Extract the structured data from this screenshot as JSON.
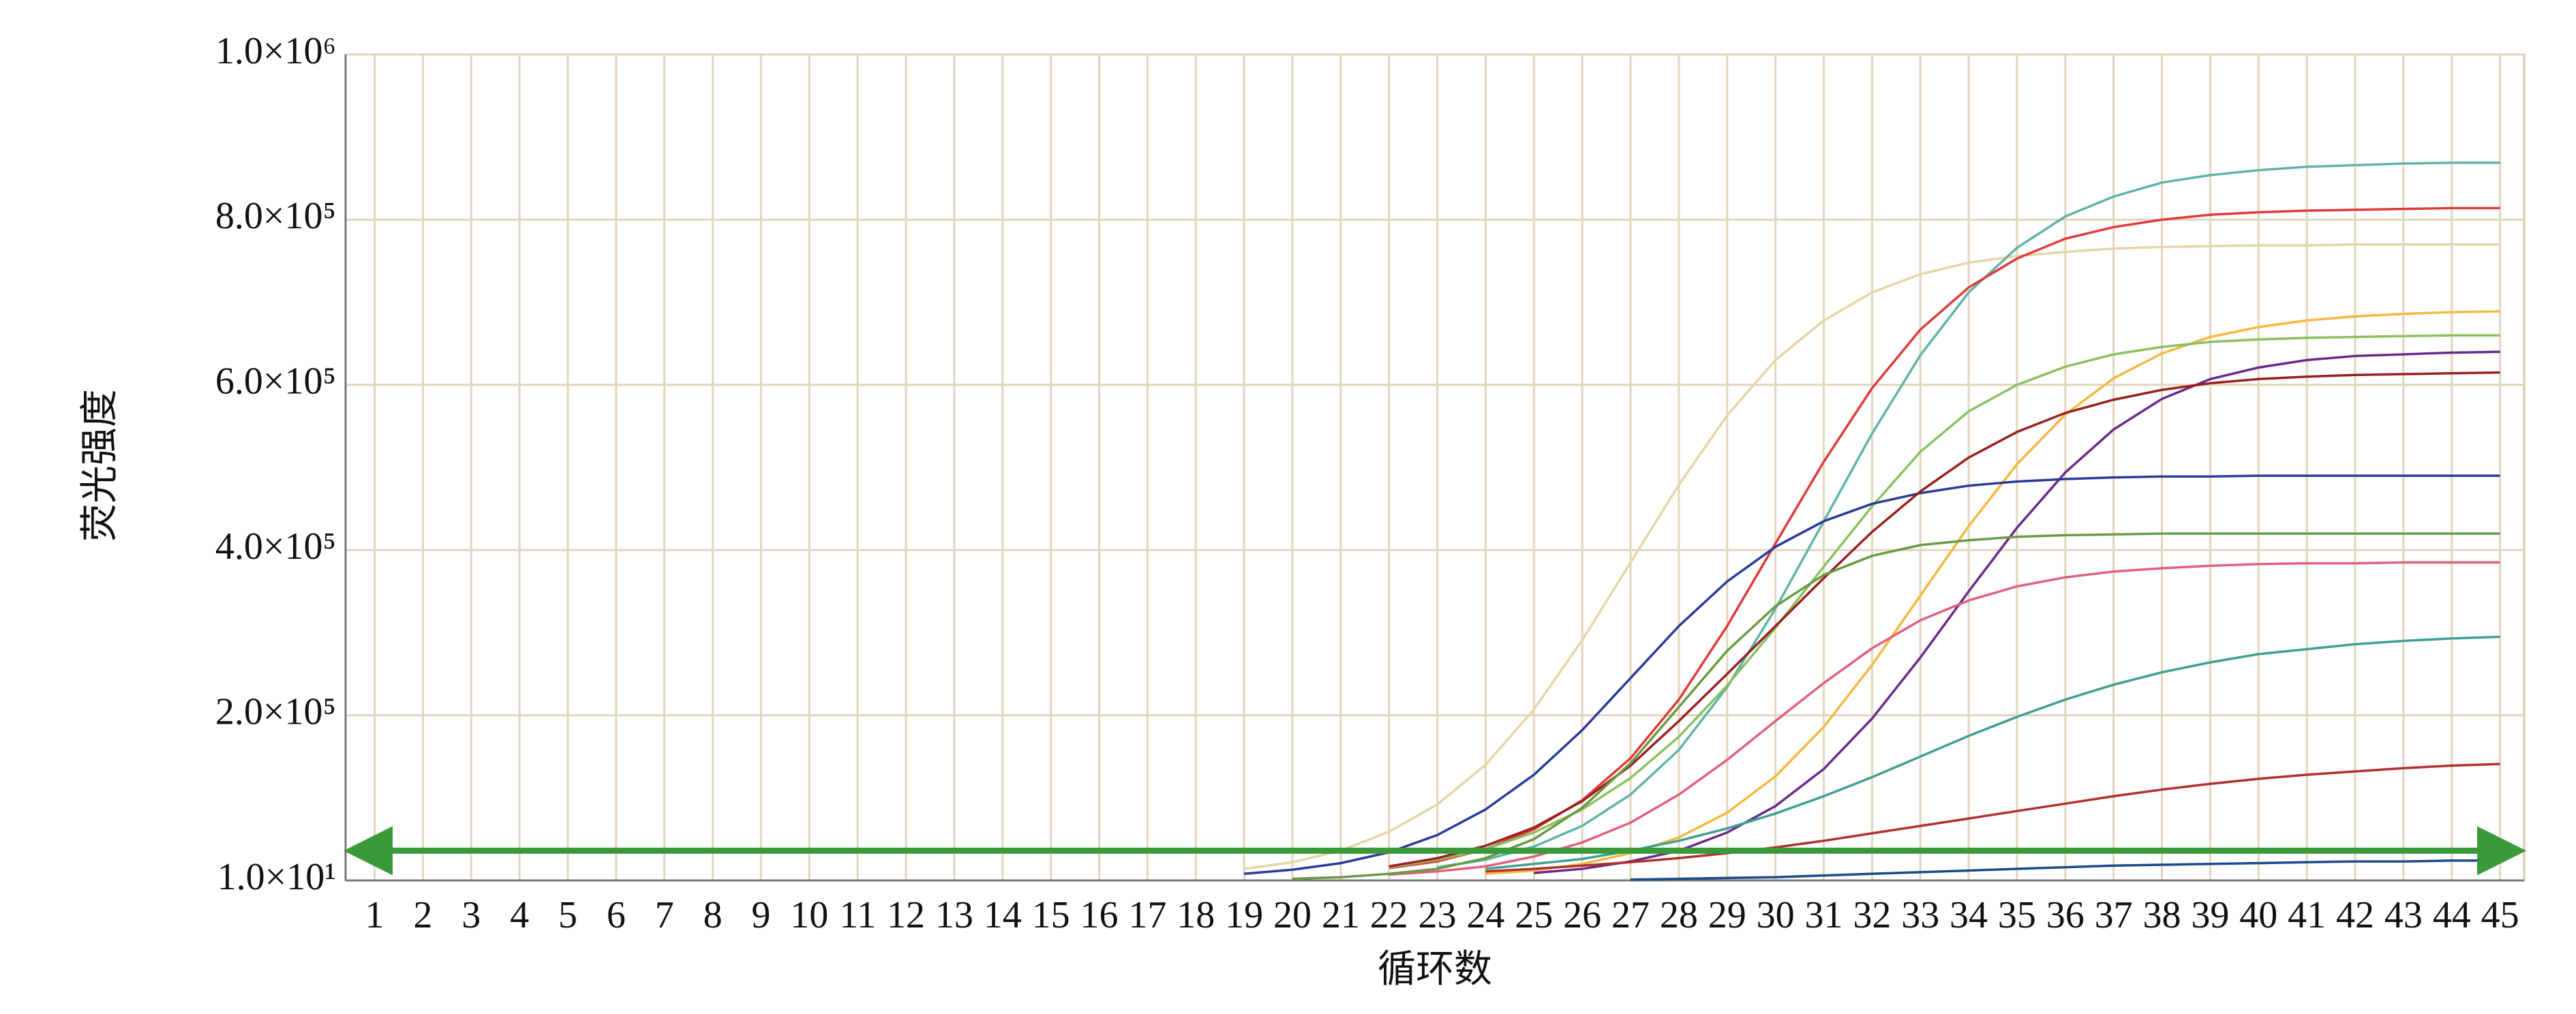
{
  "chart_data": {
    "type": "line",
    "y_label": "荧光强度",
    "x_label": "循环数",
    "x": [
      1,
      2,
      3,
      4,
      5,
      6,
      7,
      8,
      9,
      10,
      11,
      12,
      13,
      14,
      15,
      16,
      17,
      18,
      19,
      20,
      21,
      22,
      23,
      24,
      25,
      26,
      27,
      28,
      29,
      30,
      31,
      32,
      33,
      34,
      35,
      36,
      37,
      38,
      39,
      40,
      41,
      42,
      43,
      44,
      45
    ],
    "xlim": [
      0.4,
      45.5
    ],
    "xticks": [
      1,
      2,
      3,
      4,
      5,
      6,
      7,
      8,
      9,
      10,
      11,
      12,
      13,
      14,
      15,
      16,
      17,
      18,
      19,
      20,
      21,
      22,
      23,
      24,
      25,
      26,
      27,
      28,
      29,
      30,
      31,
      32,
      33,
      34,
      35,
      36,
      37,
      38,
      39,
      40,
      41,
      42,
      43,
      44,
      45
    ],
    "ylim": [
      10,
      1000000
    ],
    "yticks": [
      {
        "value": 10,
        "label": "1.0×10¹"
      },
      {
        "value": 200000,
        "label": "2.0×10⁵"
      },
      {
        "value": 400000,
        "label": "4.0×10⁵"
      },
      {
        "value": 600000,
        "label": "6.0×10⁵"
      },
      {
        "value": 800000,
        "label": "8.0×10⁵"
      },
      {
        "value": 1000000,
        "label": "1.0×10⁶"
      }
    ],
    "grid": true,
    "threshold": 36000,
    "threshold_color": "#3a9a3a",
    "series": [
      {
        "color": "#e6d6a6",
        "values": [
          null,
          null,
          null,
          null,
          null,
          null,
          null,
          null,
          null,
          null,
          null,
          null,
          null,
          null,
          null,
          null,
          null,
          null,
          14000,
          22000,
          36000,
          59000,
          92000,
          140000,
          207000,
          291000,
          385000,
          479000,
          563000,
          630000,
          678000,
          712000,
          734000,
          748000,
          756000,
          761000,
          765000,
          767000,
          768000,
          769000,
          769000,
          770000,
          770000,
          770000,
          770000
        ]
      },
      {
        "color": "#5fb3a8",
        "values": [
          null,
          null,
          null,
          null,
          null,
          null,
          null,
          null,
          null,
          null,
          null,
          null,
          null,
          null,
          null,
          null,
          null,
          null,
          null,
          null,
          null,
          null,
          16000,
          25000,
          41000,
          66000,
          104000,
          158000,
          234000,
          329000,
          435000,
          541000,
          636000,
          712000,
          766000,
          804000,
          828000,
          845000,
          854000,
          860000,
          864000,
          866000,
          868000,
          869000,
          869000
        ]
      },
      {
        "color": "#e03a3a",
        "values": [
          null,
          null,
          null,
          null,
          null,
          null,
          null,
          null,
          null,
          null,
          null,
          null,
          null,
          null,
          null,
          null,
          null,
          null,
          null,
          null,
          null,
          15000,
          23000,
          38000,
          62000,
          97000,
          148000,
          219000,
          308000,
          408000,
          507000,
          596000,
          667000,
          718000,
          753000,
          777000,
          791000,
          800000,
          806000,
          809000,
          811000,
          812000,
          813000,
          814000,
          814000
        ]
      },
      {
        "color": "#f5b840",
        "values": [
          null,
          null,
          null,
          null,
          null,
          null,
          null,
          null,
          null,
          null,
          null,
          null,
          null,
          null,
          null,
          null,
          null,
          null,
          null,
          null,
          null,
          null,
          null,
          8000,
          12000,
          20000,
          33000,
          52000,
          82000,
          126000,
          186000,
          261000,
          345000,
          429000,
          504000,
          564000,
          608000,
          638000,
          658000,
          670000,
          678000,
          683000,
          686000,
          688000,
          689000
        ]
      },
      {
        "color": "#6a2a8a",
        "values": [
          null,
          null,
          null,
          null,
          null,
          null,
          null,
          null,
          null,
          null,
          null,
          null,
          null,
          null,
          null,
          null,
          null,
          null,
          null,
          null,
          null,
          null,
          null,
          null,
          9000,
          14000,
          23000,
          36000,
          58000,
          90000,
          135000,
          196000,
          270000,
          350000,
          427000,
          494000,
          546000,
          583000,
          607000,
          621000,
          630000,
          635000,
          637000,
          639000,
          640000
        ]
      },
      {
        "color": "#8cc060",
        "values": [
          null,
          null,
          null,
          null,
          null,
          null,
          null,
          null,
          null,
          null,
          null,
          null,
          null,
          null,
          null,
          null,
          null,
          null,
          null,
          null,
          null,
          16000,
          25000,
          38000,
          58000,
          86000,
          124000,
          174000,
          236000,
          306000,
          380000,
          453000,
          519000,
          568000,
          600000,
          622000,
          637000,
          646000,
          652000,
          655000,
          657000,
          658000,
          659000,
          660000,
          660000
        ]
      },
      {
        "color": "#2a3a9a",
        "values": [
          null,
          null,
          null,
          null,
          null,
          null,
          null,
          null,
          null,
          null,
          null,
          null,
          null,
          null,
          null,
          null,
          null,
          null,
          8000,
          13000,
          21000,
          34000,
          55000,
          86000,
          128000,
          182000,
          245000,
          308000,
          362000,
          404000,
          435000,
          456000,
          469000,
          478000,
          483000,
          486000,
          488000,
          489000,
          489000,
          490000,
          490000,
          490000,
          490000,
          490000,
          490000
        ]
      },
      {
        "color": "#9a2020",
        "values": [
          null,
          null,
          null,
          null,
          null,
          null,
          null,
          null,
          null,
          null,
          null,
          null,
          null,
          null,
          null,
          null,
          null,
          null,
          null,
          null,
          null,
          17000,
          27000,
          42000,
          64000,
          96000,
          139000,
          193000,
          250000,
          308000,
          366000,
          422000,
          471000,
          512000,
          543000,
          566000,
          582000,
          594000,
          602000,
          607000,
          610000,
          612000,
          613000,
          614000,
          615000
        ]
      },
      {
        "color": "#e06080",
        "values": [
          null,
          null,
          null,
          null,
          null,
          null,
          null,
          null,
          null,
          null,
          null,
          null,
          null,
          null,
          null,
          null,
          null,
          null,
          null,
          null,
          null,
          7000,
          11000,
          17000,
          29000,
          46000,
          70000,
          104000,
          146000,
          193000,
          239000,
          281000,
          315000,
          339000,
          356000,
          367000,
          374000,
          378000,
          381000,
          383000,
          384000,
          384000,
          385000,
          385000,
          385000
        ]
      },
      {
        "color": "#3f9f94",
        "values": [
          null,
          null,
          null,
          null,
          null,
          null,
          null,
          null,
          null,
          null,
          null,
          null,
          null,
          null,
          null,
          null,
          null,
          null,
          null,
          null,
          null,
          null,
          null,
          14000,
          20000,
          26000,
          36000,
          48000,
          63000,
          81000,
          102000,
          125000,
          150000,
          175000,
          198000,
          219000,
          237000,
          252000,
          264000,
          274000,
          280000,
          286000,
          290000,
          293000,
          295000
        ]
      },
      {
        "color": "#b03030",
        "values": [
          null,
          null,
          null,
          null,
          null,
          null,
          null,
          null,
          null,
          null,
          null,
          null,
          null,
          null,
          null,
          null,
          null,
          null,
          null,
          null,
          null,
          null,
          null,
          11000,
          14000,
          18000,
          22000,
          27000,
          33000,
          40000,
          48000,
          57000,
          66000,
          75000,
          84000,
          93000,
          102000,
          110000,
          117000,
          123000,
          128000,
          132000,
          136000,
          139000,
          141000
        ]
      },
      {
        "color": "#1a4a8a",
        "values": [
          null,
          null,
          null,
          null,
          null,
          null,
          null,
          null,
          null,
          null,
          null,
          null,
          null,
          null,
          null,
          null,
          null,
          null,
          null,
          null,
          null,
          null,
          null,
          null,
          null,
          null,
          1000,
          2000,
          3000,
          4000,
          6000,
          8000,
          10000,
          12000,
          14000,
          16000,
          18000,
          19000,
          20000,
          21000,
          22000,
          23000,
          23000,
          24000,
          24000
        ]
      },
      {
        "color": "#6a9a40",
        "values": [
          null,
          null,
          null,
          null,
          null,
          null,
          null,
          null,
          null,
          null,
          null,
          null,
          null,
          null,
          null,
          null,
          null,
          null,
          null,
          2000,
          4000,
          8000,
          14000,
          27000,
          50000,
          88000,
          142000,
          210000,
          278000,
          332000,
          370000,
          393000,
          406000,
          412000,
          416000,
          418000,
          419000,
          420000,
          420000,
          420000,
          420000,
          420000,
          420000,
          420000,
          420000
        ]
      }
    ]
  }
}
